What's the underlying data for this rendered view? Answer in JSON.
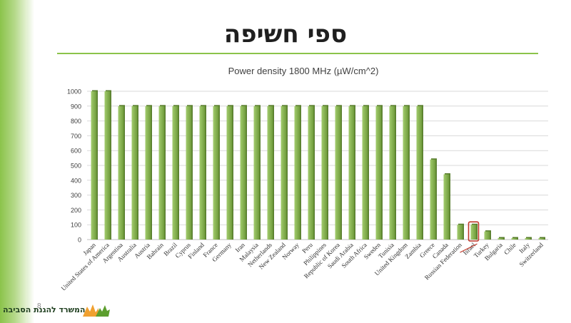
{
  "slide": {
    "title": "ספי חשיפה",
    "footer_text": "המשרד להגנת הסביבה",
    "page_number": "8"
  },
  "colors": {
    "bar_light": "#a3cc6e",
    "bar_dark": "#6e9a3a",
    "highlight_box": "#c0392b",
    "grid": "#d9d9d9",
    "accent": "#8bc34a"
  },
  "chart_data": {
    "type": "bar",
    "title": "Power density  1800 MHz (µW/cm^2)",
    "xlabel": "",
    "ylabel": "",
    "ylim": [
      0,
      1000
    ],
    "yticks": [
      0,
      100,
      200,
      300,
      400,
      500,
      600,
      700,
      800,
      900,
      1000
    ],
    "grid": true,
    "highlight": "Israel",
    "categories": [
      "Japan",
      "United States of America",
      "Argentina",
      "Australia",
      "Austria",
      "Bahrain",
      "Brazil",
      "Cyprus",
      "Finland",
      "France",
      "Germany",
      "Iran",
      "Malaysia",
      "Netherlands",
      "New Zealand",
      "Norway",
      "Peru",
      "Philippines",
      "Republic of Korea",
      "Saudi Arabia",
      "South Africa",
      "Sweden",
      "Tunisia",
      "United Kingdom",
      "Zambia",
      "Greece",
      "Canada",
      "Russian Federation",
      "Israel",
      "Turkey",
      "Bulgaria",
      "Chile",
      "Italy",
      "Switzerland"
    ],
    "values": [
      1000,
      1000,
      900,
      900,
      900,
      900,
      900,
      900,
      900,
      900,
      900,
      900,
      900,
      900,
      900,
      900,
      900,
      900,
      900,
      900,
      900,
      900,
      900,
      900,
      900,
      540,
      440,
      100,
      100,
      55,
      10,
      10,
      10,
      10
    ]
  }
}
